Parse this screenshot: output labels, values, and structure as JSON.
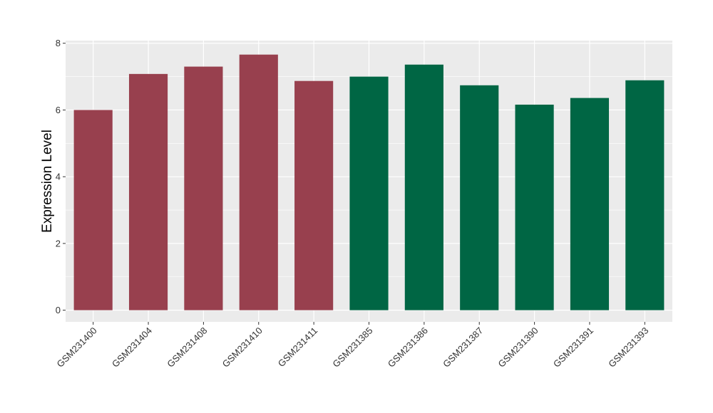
{
  "chart_data": {
    "type": "bar",
    "title": "",
    "xlabel": "",
    "ylabel": "Expression Level",
    "ylim": [
      -0.35,
      8.08
    ],
    "yticks": [
      0,
      2,
      4,
      6,
      8
    ],
    "grid": true,
    "legend": "none",
    "categories": [
      "GSM231400",
      "GSM231404",
      "GSM231408",
      "GSM231410",
      "GSM231411",
      "GSM231385",
      "GSM231386",
      "GSM231387",
      "GSM231390",
      "GSM231391",
      "GSM231393"
    ],
    "values": [
      6.0,
      7.08,
      7.3,
      7.66,
      6.87,
      7.0,
      7.36,
      6.74,
      6.16,
      6.36,
      6.89
    ],
    "bar_colors": [
      "#98404E",
      "#98404E",
      "#98404E",
      "#98404E",
      "#98404E",
      "#006644",
      "#006644",
      "#006644",
      "#006644",
      "#006644",
      "#006644"
    ],
    "panel_background": "#EBEBEB",
    "grid_color": "#FFFFFF"
  }
}
